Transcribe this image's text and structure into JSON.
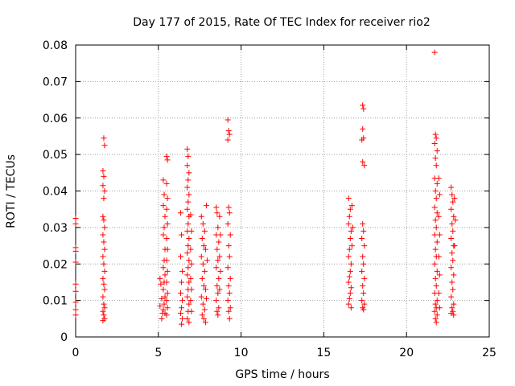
{
  "chart_data": {
    "type": "scatter",
    "title": "Day 177 of 2015, Rate Of TEC Index for receiver rio2",
    "xlabel": "GPS time / hours",
    "ylabel": "ROTI / TECUs",
    "xlim": [
      0,
      25
    ],
    "ylim": [
      0,
      0.08
    ],
    "x_ticks": [
      0,
      5,
      10,
      15,
      20,
      25
    ],
    "x_tick_labels": [
      "0",
      "5",
      "10",
      "15",
      "20",
      "25"
    ],
    "y_ticks": [
      0,
      0.01,
      0.02,
      0.03,
      0.04,
      0.05,
      0.06,
      0.07,
      0.08
    ],
    "y_tick_labels": [
      "0",
      "0.01",
      "0.02",
      "0.03",
      "0.04",
      "0.05",
      "0.06",
      "0.07",
      "0.08"
    ],
    "grid": true,
    "marker": "+",
    "color": "#ff0000",
    "series": [
      {
        "name": "rio2",
        "points": [
          [
            0.0,
            0.0325
          ],
          [
            0.0,
            0.031
          ],
          [
            0.0,
            0.0245
          ],
          [
            0.0,
            0.0235
          ],
          [
            0.0,
            0.0205
          ],
          [
            0.0,
            0.0145
          ],
          [
            0.0,
            0.0125
          ],
          [
            0.0,
            0.0095
          ],
          [
            0.0,
            0.0075
          ],
          [
            0.0,
            0.006
          ],
          [
            1.7,
            0.0545
          ],
          [
            1.75,
            0.0525
          ],
          [
            1.65,
            0.0455
          ],
          [
            1.7,
            0.044
          ],
          [
            1.65,
            0.0415
          ],
          [
            1.75,
            0.04
          ],
          [
            1.7,
            0.038
          ],
          [
            1.65,
            0.033
          ],
          [
            1.7,
            0.032
          ],
          [
            1.75,
            0.03
          ],
          [
            1.65,
            0.028
          ],
          [
            1.7,
            0.026
          ],
          [
            1.75,
            0.024
          ],
          [
            1.65,
            0.022
          ],
          [
            1.7,
            0.02
          ],
          [
            1.75,
            0.018
          ],
          [
            1.65,
            0.016
          ],
          [
            1.7,
            0.0145
          ],
          [
            1.75,
            0.013
          ],
          [
            1.65,
            0.011
          ],
          [
            1.7,
            0.009
          ],
          [
            1.75,
            0.008
          ],
          [
            1.65,
            0.007
          ],
          [
            1.7,
            0.006
          ],
          [
            1.75,
            0.005
          ],
          [
            1.65,
            0.0045
          ],
          [
            5.1,
            0.016
          ],
          [
            5.15,
            0.0145
          ],
          [
            5.2,
            0.0105
          ],
          [
            5.1,
            0.0085
          ],
          [
            5.25,
            0.0065
          ],
          [
            5.2,
            0.005
          ],
          [
            5.3,
            0.043
          ],
          [
            5.35,
            0.039
          ],
          [
            5.3,
            0.036
          ],
          [
            5.4,
            0.033
          ],
          [
            5.35,
            0.03
          ],
          [
            5.3,
            0.028
          ],
          [
            5.4,
            0.024
          ],
          [
            5.35,
            0.021
          ],
          [
            5.3,
            0.019
          ],
          [
            5.4,
            0.017
          ],
          [
            5.35,
            0.015
          ],
          [
            5.3,
            0.013
          ],
          [
            5.4,
            0.011
          ],
          [
            5.35,
            0.009
          ],
          [
            5.3,
            0.0075
          ],
          [
            5.4,
            0.0065
          ],
          [
            5.5,
            0.0495
          ],
          [
            5.55,
            0.0485
          ],
          [
            5.5,
            0.042
          ],
          [
            5.55,
            0.038
          ],
          [
            5.5,
            0.035
          ],
          [
            5.55,
            0.031
          ],
          [
            5.5,
            0.027
          ],
          [
            5.55,
            0.024
          ],
          [
            5.5,
            0.021
          ],
          [
            5.55,
            0.018
          ],
          [
            5.5,
            0.015
          ],
          [
            5.55,
            0.012
          ],
          [
            5.5,
            0.01
          ],
          [
            5.55,
            0.008
          ],
          [
            5.5,
            0.006
          ],
          [
            6.35,
            0.034
          ],
          [
            6.4,
            0.028
          ],
          [
            6.35,
            0.022
          ],
          [
            6.45,
            0.018
          ],
          [
            6.4,
            0.015
          ],
          [
            6.35,
            0.012
          ],
          [
            6.45,
            0.01
          ],
          [
            6.4,
            0.008
          ],
          [
            6.35,
            0.0065
          ],
          [
            6.45,
            0.005
          ],
          [
            6.4,
            0.0035
          ],
          [
            6.75,
            0.0515
          ],
          [
            6.8,
            0.0495
          ],
          [
            6.75,
            0.047
          ],
          [
            6.85,
            0.045
          ],
          [
            6.8,
            0.043
          ],
          [
            6.75,
            0.041
          ],
          [
            6.85,
            0.039
          ],
          [
            6.8,
            0.037
          ],
          [
            6.75,
            0.035
          ],
          [
            6.85,
            0.033
          ],
          [
            6.8,
            0.031
          ],
          [
            6.75,
            0.029
          ],
          [
            6.85,
            0.027
          ],
          [
            6.8,
            0.025
          ],
          [
            6.75,
            0.023
          ],
          [
            6.85,
            0.021
          ],
          [
            6.8,
            0.019
          ],
          [
            6.75,
            0.017
          ],
          [
            6.85,
            0.015
          ],
          [
            6.8,
            0.013
          ],
          [
            6.75,
            0.011
          ],
          [
            6.85,
            0.009
          ],
          [
            6.8,
            0.007
          ],
          [
            6.75,
            0.005
          ],
          [
            6.85,
            0.004
          ],
          [
            6.95,
            0.0335
          ],
          [
            7.0,
            0.029
          ],
          [
            6.95,
            0.024
          ],
          [
            7.0,
            0.02
          ],
          [
            6.95,
            0.016
          ],
          [
            7.0,
            0.013
          ],
          [
            6.95,
            0.01
          ],
          [
            7.0,
            0.007
          ],
          [
            7.6,
            0.033
          ],
          [
            7.7,
            0.031
          ],
          [
            7.8,
            0.029
          ],
          [
            7.65,
            0.027
          ],
          [
            7.75,
            0.025
          ],
          [
            7.85,
            0.024
          ],
          [
            7.6,
            0.022
          ],
          [
            7.7,
            0.02
          ],
          [
            7.8,
            0.018
          ],
          [
            7.65,
            0.016
          ],
          [
            7.75,
            0.014
          ],
          [
            7.85,
            0.013
          ],
          [
            7.6,
            0.011
          ],
          [
            7.7,
            0.009
          ],
          [
            7.8,
            0.0075
          ],
          [
            7.65,
            0.006
          ],
          [
            7.75,
            0.005
          ],
          [
            7.85,
            0.004
          ],
          [
            7.9,
            0.036
          ],
          [
            7.95,
            0.021
          ],
          [
            7.9,
            0.0105
          ],
          [
            8.5,
            0.0355
          ],
          [
            8.55,
            0.034
          ],
          [
            8.6,
            0.03
          ],
          [
            8.5,
            0.028
          ],
          [
            8.65,
            0.026
          ],
          [
            8.55,
            0.024
          ],
          [
            8.6,
            0.021
          ],
          [
            8.5,
            0.019
          ],
          [
            8.65,
            0.016
          ],
          [
            8.55,
            0.014
          ],
          [
            8.6,
            0.012
          ],
          [
            8.5,
            0.01
          ],
          [
            8.65,
            0.008
          ],
          [
            8.55,
            0.007
          ],
          [
            8.6,
            0.006
          ],
          [
            8.7,
            0.033
          ],
          [
            8.75,
            0.028
          ],
          [
            8.7,
            0.022
          ],
          [
            8.75,
            0.018
          ],
          [
            8.7,
            0.013
          ],
          [
            9.2,
            0.0595
          ],
          [
            9.25,
            0.0565
          ],
          [
            9.3,
            0.0555
          ],
          [
            9.2,
            0.054
          ],
          [
            9.25,
            0.0355
          ],
          [
            9.3,
            0.034
          ],
          [
            9.2,
            0.031
          ],
          [
            9.35,
            0.028
          ],
          [
            9.25,
            0.025
          ],
          [
            9.3,
            0.022
          ],
          [
            9.2,
            0.019
          ],
          [
            9.35,
            0.016
          ],
          [
            9.25,
            0.014
          ],
          [
            9.3,
            0.012
          ],
          [
            9.2,
            0.01
          ],
          [
            9.35,
            0.008
          ],
          [
            9.25,
            0.007
          ],
          [
            9.3,
            0.005
          ],
          [
            16.5,
            0.038
          ],
          [
            16.6,
            0.035
          ],
          [
            16.55,
            0.033
          ],
          [
            16.5,
            0.031
          ],
          [
            16.65,
            0.029
          ],
          [
            16.6,
            0.027
          ],
          [
            16.55,
            0.024
          ],
          [
            16.5,
            0.022
          ],
          [
            16.65,
            0.02
          ],
          [
            16.6,
            0.018
          ],
          [
            16.55,
            0.0165
          ],
          [
            16.5,
            0.015
          ],
          [
            16.65,
            0.0135
          ],
          [
            16.6,
            0.012
          ],
          [
            16.55,
            0.0105
          ],
          [
            16.5,
            0.009
          ],
          [
            16.65,
            0.008
          ],
          [
            16.7,
            0.036
          ],
          [
            16.75,
            0.03
          ],
          [
            16.7,
            0.025
          ],
          [
            17.35,
            0.0635
          ],
          [
            17.4,
            0.0625
          ],
          [
            17.35,
            0.057
          ],
          [
            17.4,
            0.0545
          ],
          [
            17.3,
            0.054
          ],
          [
            17.35,
            0.048
          ],
          [
            17.45,
            0.047
          ],
          [
            17.35,
            0.031
          ],
          [
            17.4,
            0.029
          ],
          [
            17.3,
            0.027
          ],
          [
            17.45,
            0.025
          ],
          [
            17.35,
            0.022
          ],
          [
            17.4,
            0.02
          ],
          [
            17.3,
            0.018
          ],
          [
            17.45,
            0.016
          ],
          [
            17.35,
            0.014
          ],
          [
            17.4,
            0.012
          ],
          [
            17.3,
            0.01
          ],
          [
            17.45,
            0.009
          ],
          [
            17.35,
            0.008
          ],
          [
            17.4,
            0.0075
          ],
          [
            21.7,
            0.078
          ],
          [
            21.75,
            0.0555
          ],
          [
            21.8,
            0.0545
          ],
          [
            21.7,
            0.053
          ],
          [
            21.85,
            0.051
          ],
          [
            21.75,
            0.049
          ],
          [
            21.8,
            0.047
          ],
          [
            21.7,
            0.0435
          ],
          [
            21.85,
            0.042
          ],
          [
            21.75,
            0.04
          ],
          [
            21.8,
            0.038
          ],
          [
            21.7,
            0.0355
          ],
          [
            21.85,
            0.034
          ],
          [
            21.75,
            0.032
          ],
          [
            21.8,
            0.03
          ],
          [
            21.7,
            0.028
          ],
          [
            21.85,
            0.026
          ],
          [
            21.75,
            0.024
          ],
          [
            21.8,
            0.022
          ],
          [
            21.7,
            0.02
          ],
          [
            21.85,
            0.018
          ],
          [
            21.75,
            0.016
          ],
          [
            21.8,
            0.014
          ],
          [
            21.7,
            0.012
          ],
          [
            21.85,
            0.01
          ],
          [
            21.75,
            0.009
          ],
          [
            21.8,
            0.008
          ],
          [
            21.7,
            0.007
          ],
          [
            21.85,
            0.006
          ],
          [
            21.75,
            0.005
          ],
          [
            21.8,
            0.004
          ],
          [
            21.95,
            0.0435
          ],
          [
            22.0,
            0.039
          ],
          [
            21.95,
            0.033
          ],
          [
            22.0,
            0.028
          ],
          [
            21.95,
            0.022
          ],
          [
            22.0,
            0.017
          ],
          [
            21.95,
            0.012
          ],
          [
            22.0,
            0.008
          ],
          [
            22.7,
            0.041
          ],
          [
            22.75,
            0.039
          ],
          [
            22.8,
            0.037
          ],
          [
            22.7,
            0.035
          ],
          [
            22.85,
            0.033
          ],
          [
            22.75,
            0.031
          ],
          [
            22.8,
            0.029
          ],
          [
            22.7,
            0.027
          ],
          [
            22.85,
            0.025
          ],
          [
            22.75,
            0.023
          ],
          [
            22.8,
            0.021
          ],
          [
            22.7,
            0.019
          ],
          [
            22.85,
            0.017
          ],
          [
            22.75,
            0.015
          ],
          [
            22.8,
            0.013
          ],
          [
            22.7,
            0.011
          ],
          [
            22.85,
            0.009
          ],
          [
            22.75,
            0.008
          ],
          [
            22.8,
            0.007
          ],
          [
            22.7,
            0.0065
          ],
          [
            22.85,
            0.006
          ],
          [
            22.9,
            0.038
          ],
          [
            22.95,
            0.032
          ],
          [
            22.9,
            0.025
          ]
        ]
      }
    ]
  }
}
